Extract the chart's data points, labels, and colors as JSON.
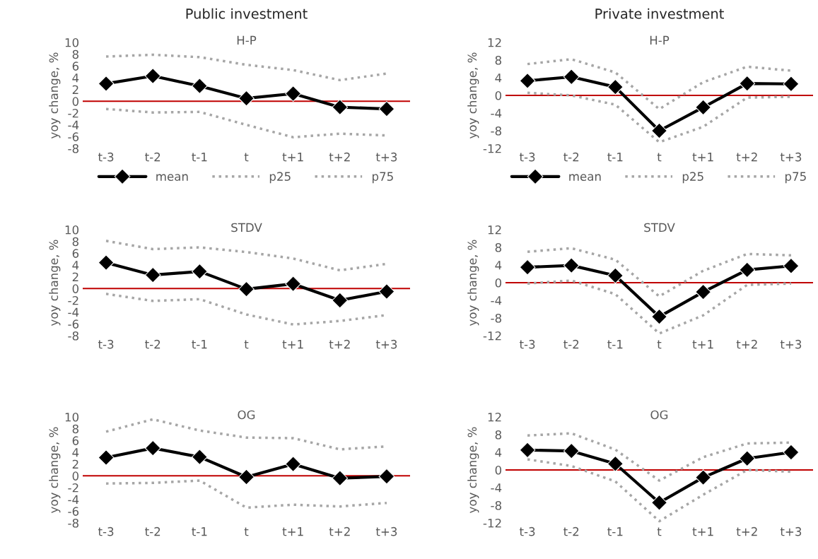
{
  "chart_data": [
    {
      "type": "line",
      "title": "H-P",
      "ylabel": "yoy change, %",
      "annotations": [
        "Public investment"
      ],
      "categories": [
        "t-3",
        "t-2",
        "t-1",
        "t",
        "t+1",
        "t+2",
        "t+3"
      ],
      "ylim": [
        -8,
        10
      ],
      "yticks": [
        -8,
        -6,
        -4,
        -2,
        0,
        2,
        4,
        6,
        8,
        10
      ],
      "legend": "bottom",
      "grid": false,
      "ref_lines": [
        {
          "axis": "y",
          "value": 0,
          "color": "#c00000"
        }
      ],
      "series": [
        {
          "name": "mean",
          "color": "#000000",
          "marker": "diamond",
          "line_style": "solid",
          "values": [
            3.0,
            4.3,
            2.6,
            0.5,
            1.3,
            -1.0,
            -1.3
          ]
        },
        {
          "name": "p25",
          "color": "#a6a6a6",
          "marker": "none",
          "line_style": "dotted",
          "values": [
            -1.3,
            -1.9,
            -1.8,
            -4.0,
            -6.1,
            -5.5,
            -5.8
          ]
        },
        {
          "name": "p75",
          "color": "#a6a6a6",
          "marker": "none",
          "line_style": "dotted",
          "values": [
            7.6,
            7.9,
            7.5,
            6.2,
            5.3,
            3.6,
            4.7
          ]
        }
      ]
    },
    {
      "type": "line",
      "title": "H-P",
      "ylabel": "yoy change, %",
      "annotations": [
        "Private investment"
      ],
      "categories": [
        "t-3",
        "t-2",
        "t-1",
        "t",
        "t+1",
        "t+2",
        "t+3"
      ],
      "ylim": [
        -12,
        12
      ],
      "yticks": [
        -12,
        -8,
        -4,
        0,
        4,
        8,
        12
      ],
      "legend": "bottom",
      "grid": false,
      "ref_lines": [
        {
          "axis": "y",
          "value": 0,
          "color": "#c00000"
        }
      ],
      "series": [
        {
          "name": "mean",
          "color": "#000000",
          "marker": "diamond",
          "line_style": "solid",
          "values": [
            3.3,
            4.2,
            1.9,
            -8.0,
            -2.7,
            2.7,
            2.6
          ]
        },
        {
          "name": "p25",
          "color": "#a6a6a6",
          "marker": "none",
          "line_style": "dotted",
          "values": [
            0.6,
            0.0,
            -2.1,
            -10.6,
            -7.1,
            -0.5,
            -0.3
          ]
        },
        {
          "name": "p75",
          "color": "#a6a6a6",
          "marker": "none",
          "line_style": "dotted",
          "values": [
            7.1,
            8.2,
            5.2,
            -3.1,
            3.0,
            6.5,
            5.6
          ]
        }
      ]
    },
    {
      "type": "line",
      "title": "STDV",
      "ylabel": "yoy change, %",
      "categories": [
        "t-3",
        "t-2",
        "t-1",
        "t",
        "t+1",
        "t+2",
        "t+3"
      ],
      "ylim": [
        -8,
        10
      ],
      "yticks": [
        -8,
        -6,
        -4,
        -2,
        0,
        2,
        4,
        6,
        8,
        10
      ],
      "grid": false,
      "ref_lines": [
        {
          "axis": "y",
          "value": 0,
          "color": "#c00000"
        }
      ],
      "series": [
        {
          "color": "#000000",
          "marker": "diamond",
          "line_style": "solid",
          "values": [
            4.4,
            2.3,
            2.9,
            -0.1,
            0.8,
            -2.0,
            -0.5
          ]
        },
        {
          "color": "#a6a6a6",
          "marker": "none",
          "line_style": "dotted",
          "values": [
            -0.9,
            -2.1,
            -1.8,
            -4.4,
            -6.1,
            -5.5,
            -4.5
          ]
        },
        {
          "color": "#a6a6a6",
          "marker": "none",
          "line_style": "dotted",
          "values": [
            8.1,
            6.7,
            7.0,
            6.2,
            5.1,
            3.1,
            4.2
          ]
        }
      ]
    },
    {
      "type": "line",
      "title": "STDV",
      "ylabel": "yoy change, %",
      "categories": [
        "t-3",
        "t-2",
        "t-1",
        "t",
        "t+1",
        "t+2",
        "t+3"
      ],
      "ylim": [
        -12,
        12
      ],
      "yticks": [
        -12,
        -8,
        -4,
        0,
        4,
        8,
        12
      ],
      "grid": false,
      "ref_lines": [
        {
          "axis": "y",
          "value": 0,
          "color": "#c00000"
        }
      ],
      "series": [
        {
          "color": "#000000",
          "marker": "diamond",
          "line_style": "solid",
          "values": [
            3.5,
            3.9,
            1.6,
            -7.7,
            -2.1,
            2.9,
            3.8
          ]
        },
        {
          "color": "#a6a6a6",
          "marker": "none",
          "line_style": "dotted",
          "values": [
            -0.2,
            0.5,
            -2.6,
            -11.5,
            -7.4,
            -0.5,
            -0.2
          ]
        },
        {
          "color": "#a6a6a6",
          "marker": "none",
          "line_style": "dotted",
          "values": [
            7.0,
            7.8,
            5.2,
            -3.1,
            2.7,
            6.5,
            6.2
          ]
        }
      ]
    },
    {
      "type": "line",
      "title": "OG",
      "ylabel": "yoy change, %",
      "categories": [
        "t-3",
        "t-2",
        "t-1",
        "t",
        "t+1",
        "t+2",
        "t+3"
      ],
      "ylim": [
        -8,
        10
      ],
      "yticks": [
        -8,
        -6,
        -4,
        -2,
        0,
        2,
        4,
        6,
        8,
        10
      ],
      "grid": false,
      "ref_lines": [
        {
          "axis": "y",
          "value": 0,
          "color": "#c00000"
        }
      ],
      "series": [
        {
          "color": "#000000",
          "marker": "diamond",
          "line_style": "solid",
          "values": [
            3.1,
            4.7,
            3.2,
            -0.2,
            2.0,
            -0.4,
            -0.1
          ]
        },
        {
          "color": "#a6a6a6",
          "marker": "none",
          "line_style": "dotted",
          "values": [
            -1.3,
            -1.2,
            -0.8,
            -5.4,
            -4.9,
            -5.2,
            -4.6
          ]
        },
        {
          "color": "#a6a6a6",
          "marker": "none",
          "line_style": "dotted",
          "values": [
            7.5,
            9.6,
            7.7,
            6.5,
            6.4,
            4.5,
            5.0
          ]
        }
      ]
    },
    {
      "type": "line",
      "title": "OG",
      "ylabel": "yoy change, %",
      "categories": [
        "t-3",
        "t-2",
        "t-1",
        "t",
        "t+1",
        "t+2",
        "t+3"
      ],
      "ylim": [
        -12,
        12
      ],
      "yticks": [
        -12,
        -8,
        -4,
        0,
        4,
        8,
        12
      ],
      "grid": false,
      "ref_lines": [
        {
          "axis": "y",
          "value": 0,
          "color": "#c00000"
        }
      ],
      "series": [
        {
          "color": "#000000",
          "marker": "diamond",
          "line_style": "solid",
          "values": [
            4.5,
            4.3,
            1.4,
            -7.4,
            -1.7,
            2.6,
            4.0
          ]
        },
        {
          "color": "#a6a6a6",
          "marker": "none",
          "line_style": "dotted",
          "values": [
            2.4,
            0.9,
            -2.6,
            -11.6,
            -5.6,
            0.0,
            -0.4
          ]
        },
        {
          "color": "#a6a6a6",
          "marker": "none",
          "line_style": "dotted",
          "values": [
            7.8,
            8.3,
            4.6,
            -2.4,
            2.9,
            6.0,
            6.2
          ]
        }
      ]
    }
  ]
}
